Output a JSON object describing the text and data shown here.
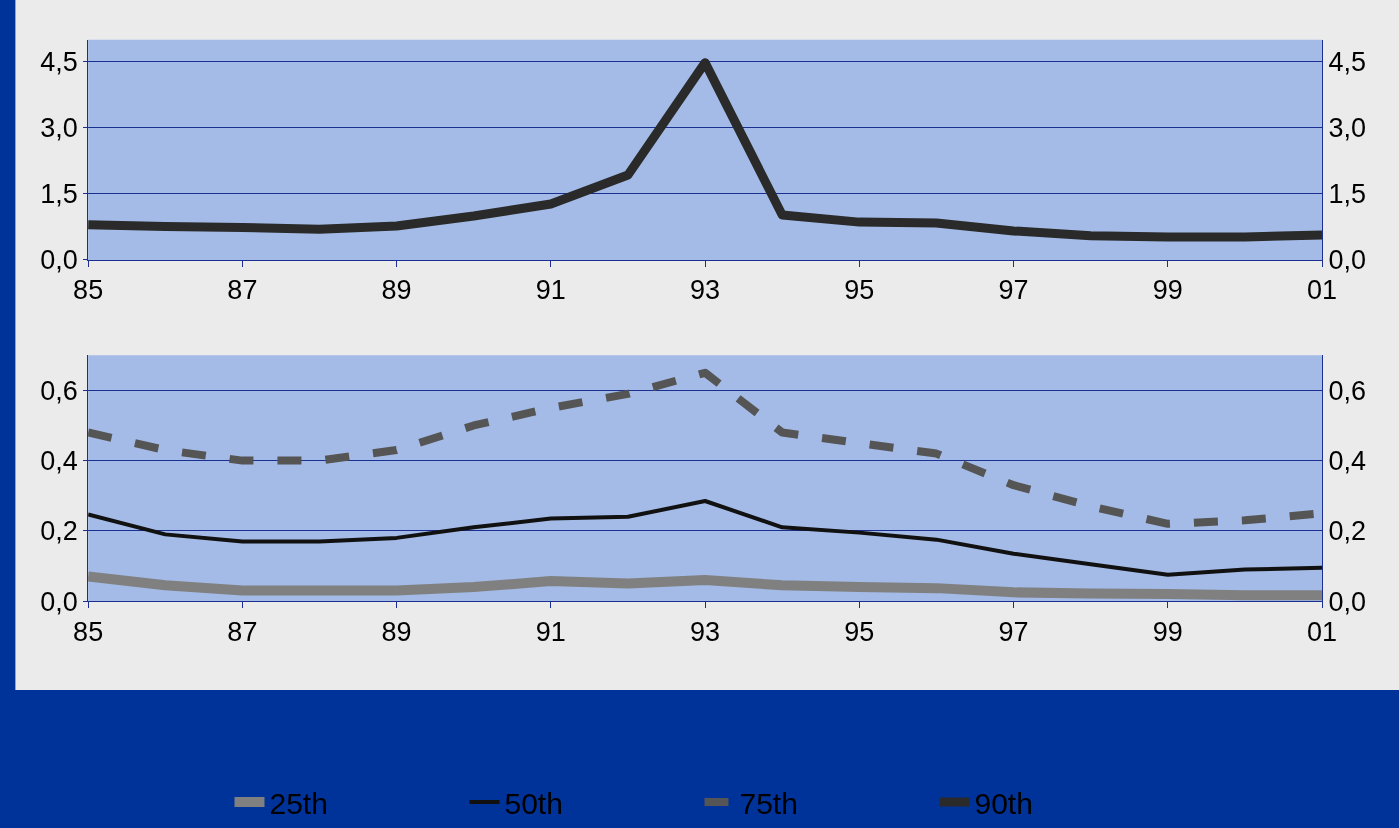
{
  "chart_data": [
    {
      "type": "line",
      "x": [
        1985,
        1986,
        1987,
        1988,
        1989,
        1990,
        1991,
        1992,
        1993,
        1994,
        1995,
        1996,
        1997,
        1998,
        1999,
        2000,
        2001
      ],
      "series": [
        {
          "name": "90th",
          "color": "#2a2a2a",
          "line_style": "solid",
          "values": [
            0.8,
            0.76,
            0.74,
            0.7,
            0.77,
            1.0,
            1.27,
            1.93,
            4.48,
            1.02,
            0.86,
            0.84,
            0.66,
            0.55,
            0.52,
            0.52,
            0.57
          ]
        }
      ],
      "xlim": [
        1985,
        2001
      ],
      "xticks": [
        {
          "value": 1985,
          "label": "85"
        },
        {
          "value": 1987,
          "label": "87"
        },
        {
          "value": 1989,
          "label": "89"
        },
        {
          "value": 1991,
          "label": "91"
        },
        {
          "value": 1993,
          "label": "93"
        },
        {
          "value": 1995,
          "label": "95"
        },
        {
          "value": 1997,
          "label": "97"
        },
        {
          "value": 1999,
          "label": "99"
        },
        {
          "value": 2001,
          "label": "01"
        }
      ],
      "ylim": [
        0,
        5
      ],
      "yticks": [
        {
          "value": 0,
          "label": "0,0"
        },
        {
          "value": 1.5,
          "label": "1,5"
        },
        {
          "value": 3,
          "label": "3,0"
        },
        {
          "value": 4.5,
          "label": "4,5"
        }
      ],
      "y2lim": [
        0,
        5
      ],
      "y2ticks": [
        {
          "value": 0,
          "label": "0,0"
        },
        {
          "value": 1.5,
          "label": "1,5"
        },
        {
          "value": 3,
          "label": "3,0"
        },
        {
          "value": 4.5,
          "label": "4,5"
        }
      ],
      "grid": "y",
      "legend": "bottom",
      "marker": "none"
    },
    {
      "type": "line",
      "x": [
        1985,
        1986,
        1987,
        1988,
        1989,
        1990,
        1991,
        1992,
        1993,
        1994,
        1995,
        1996,
        1997,
        1998,
        1999,
        2000,
        2001
      ],
      "series": [
        {
          "name": "25th",
          "color": "#808080",
          "line_style": "solid",
          "values": [
            0.07,
            0.045,
            0.03,
            0.03,
            0.03,
            0.04,
            0.057,
            0.05,
            0.06,
            0.045,
            0.04,
            0.037,
            0.025,
            0.022,
            0.02,
            0.017,
            0.017
          ]
        },
        {
          "name": "50th",
          "color": "#111111",
          "line_style": "solid",
          "values": [
            0.247,
            0.19,
            0.17,
            0.17,
            0.18,
            0.21,
            0.235,
            0.24,
            0.285,
            0.21,
            0.195,
            0.175,
            0.135,
            0.105,
            0.075,
            0.09,
            0.095
          ]
        },
        {
          "name": "75th",
          "color": "#555555",
          "line_style": "dashed",
          "values": [
            0.48,
            0.43,
            0.4,
            0.4,
            0.43,
            0.5,
            0.55,
            0.59,
            0.65,
            0.48,
            0.45,
            0.42,
            0.33,
            0.27,
            0.22,
            0.23,
            0.25
          ]
        }
      ],
      "xlim": [
        1985,
        2001
      ],
      "xticks": [
        {
          "value": 1985,
          "label": "85"
        },
        {
          "value": 1987,
          "label": "87"
        },
        {
          "value": 1989,
          "label": "89"
        },
        {
          "value": 1991,
          "label": "91"
        },
        {
          "value": 1993,
          "label": "93"
        },
        {
          "value": 1995,
          "label": "95"
        },
        {
          "value": 1997,
          "label": "97"
        },
        {
          "value": 1999,
          "label": "99"
        },
        {
          "value": 2001,
          "label": "01"
        }
      ],
      "ylim": [
        0,
        0.7
      ],
      "yticks": [
        {
          "value": 0,
          "label": "0,0"
        },
        {
          "value": 0.2,
          "label": "0,2"
        },
        {
          "value": 0.4,
          "label": "0,4"
        },
        {
          "value": 0.6,
          "label": "0,6"
        }
      ],
      "y2lim": [
        0,
        0.7
      ],
      "y2ticks": [
        {
          "value": 0,
          "label": "0,0"
        },
        {
          "value": 0.2,
          "label": "0,2"
        },
        {
          "value": 0.4,
          "label": "0,4"
        },
        {
          "value": 0.6,
          "label": "0,6"
        }
      ],
      "grid": "y",
      "legend": "bottom",
      "marker": "none"
    }
  ]
}
